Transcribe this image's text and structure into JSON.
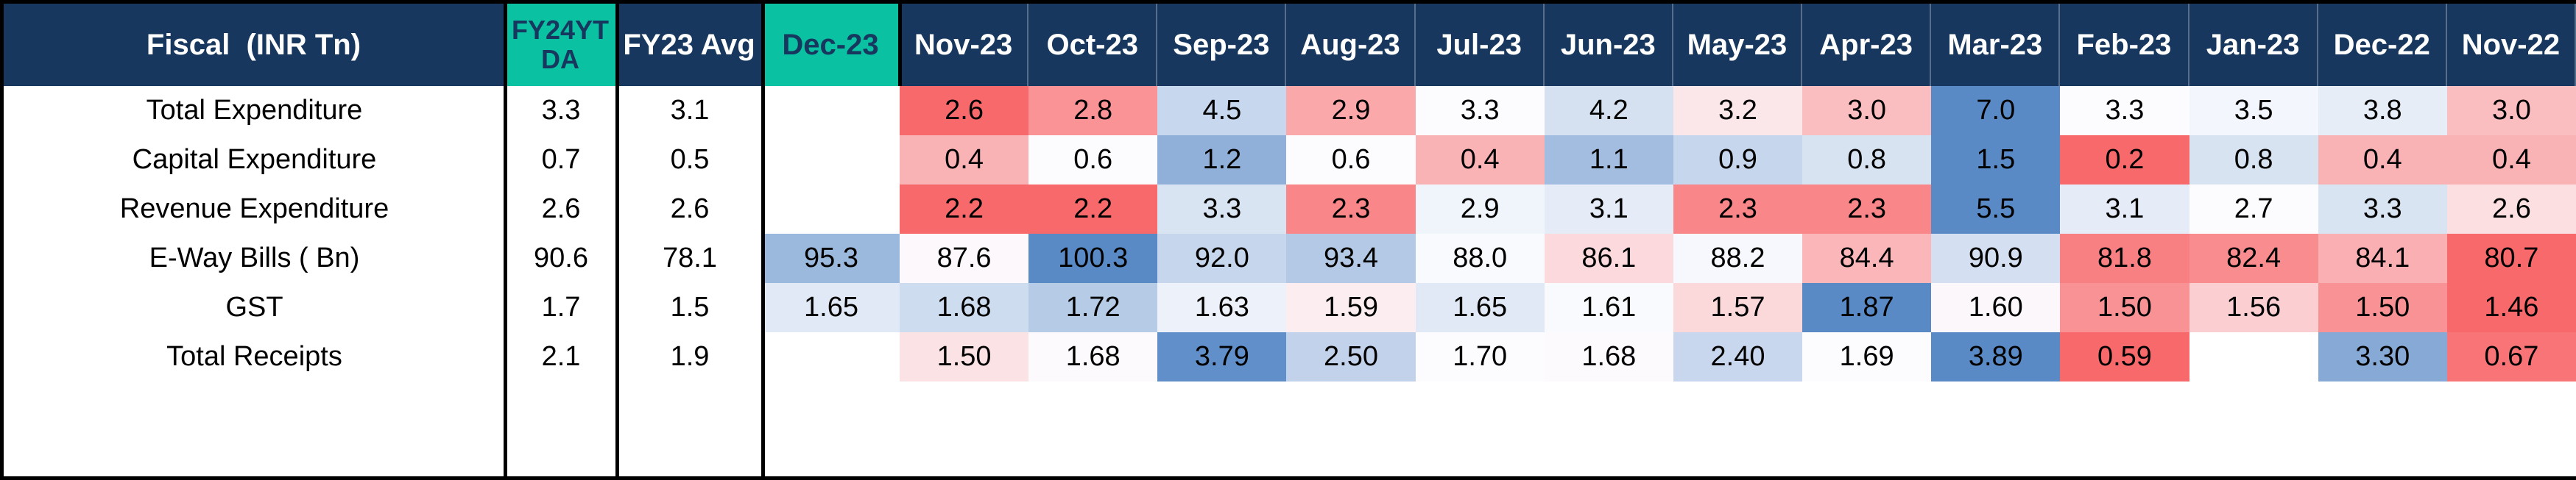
{
  "header": {
    "fiscal": "Fiscal  (INR Tn)",
    "ytd": "FY24YTDA",
    "fy23avg": "FY23 Avg",
    "months": [
      "Dec-23",
      "Nov-23",
      "Oct-23",
      "Sep-23",
      "Aug-23",
      "Jul-23",
      "Jun-23",
      "May-23",
      "Apr-23",
      "Mar-23",
      "Feb-23",
      "Jan-23",
      "Dec-22",
      "Nov-22"
    ]
  },
  "rows": [
    {
      "label": "Total Expenditure",
      "ytd": "3.3",
      "fy23avg": "3.1",
      "values": [
        "",
        "2.6",
        "2.8",
        "4.5",
        "2.9",
        "3.3",
        "4.2",
        "3.2",
        "3.0",
        "7.0",
        "3.3",
        "3.5",
        "3.8",
        "3.0"
      ]
    },
    {
      "label": "Capital Expenditure",
      "ytd": "0.7",
      "fy23avg": "0.5",
      "values": [
        "",
        "0.4",
        "0.6",
        "1.2",
        "0.6",
        "0.4",
        "1.1",
        "0.9",
        "0.8",
        "1.5",
        "0.2",
        "0.8",
        "0.4",
        "0.4"
      ]
    },
    {
      "label": "Revenue Expenditure",
      "ytd": "2.6",
      "fy23avg": "2.6",
      "values": [
        "",
        "2.2",
        "2.2",
        "3.3",
        "2.3",
        "2.9",
        "3.1",
        "2.3",
        "2.3",
        "5.5",
        "3.1",
        "2.7",
        "3.3",
        "2.6"
      ]
    },
    {
      "label": "E-Way Bills ( Bn)",
      "ytd": "90.6",
      "fy23avg": "78.1",
      "values": [
        "95.3",
        "87.6",
        "100.3",
        "92.0",
        "93.4",
        "88.0",
        "86.1",
        "88.2",
        "84.4",
        "90.9",
        "81.8",
        "82.4",
        "84.1",
        "80.7"
      ]
    },
    {
      "label": "GST",
      "ytd": "1.7",
      "fy23avg": "1.5",
      "values": [
        "1.65",
        "1.68",
        "1.72",
        "1.63",
        "1.59",
        "1.65",
        "1.61",
        "1.57",
        "1.87",
        "1.60",
        "1.50",
        "1.56",
        "1.50",
        "1.46"
      ]
    },
    {
      "label": "Total Receipts",
      "ytd": "2.1",
      "fy23avg": "1.9",
      "values": [
        "",
        "1.50",
        "1.68",
        "3.79",
        "2.50",
        "1.70",
        "1.68",
        "2.40",
        "1.69",
        "3.89",
        "0.59",
        "",
        "3.30",
        "0.67"
      ]
    }
  ],
  "colors": {
    "header_navy": "#17375E",
    "teal": "#0AC2A1",
    "scale_low": "#F8696B",
    "scale_mid": "#FCFCFF",
    "scale_high": "#5A8AC6",
    "blank_cell": "#FFFFFF",
    "text_dark": "#000000"
  },
  "chart_data": {
    "type": "heatmap",
    "title": "Fiscal  (INR Tn)",
    "columns": [
      "FY24YTDA",
      "FY23 Avg",
      "Dec-23",
      "Nov-23",
      "Oct-23",
      "Sep-23",
      "Aug-23",
      "Jul-23",
      "Jun-23",
      "May-23",
      "Apr-23",
      "Mar-23",
      "Feb-23",
      "Jan-23",
      "Dec-22",
      "Nov-22"
    ],
    "row_labels": [
      "Total Expenditure",
      "Capital Expenditure",
      "Revenue Expenditure",
      "E-Way Bills ( Bn)",
      "GST",
      "Total Receipts"
    ],
    "values": [
      [
        3.3,
        3.1,
        null,
        2.6,
        2.8,
        4.5,
        2.9,
        3.3,
        4.2,
        3.2,
        3.0,
        7.0,
        3.3,
        3.5,
        3.8,
        3.0
      ],
      [
        0.7,
        0.5,
        null,
        0.4,
        0.6,
        1.2,
        0.6,
        0.4,
        1.1,
        0.9,
        0.8,
        1.5,
        0.2,
        0.8,
        0.4,
        0.4
      ],
      [
        2.6,
        2.6,
        null,
        2.2,
        2.2,
        3.3,
        2.3,
        2.9,
        3.1,
        2.3,
        2.3,
        5.5,
        3.1,
        2.7,
        3.3,
        2.6
      ],
      [
        90.6,
        78.1,
        95.3,
        87.6,
        100.3,
        92.0,
        93.4,
        88.0,
        86.1,
        88.2,
        84.4,
        90.9,
        81.8,
        82.4,
        84.1,
        80.7
      ],
      [
        1.7,
        1.5,
        1.65,
        1.68,
        1.72,
        1.63,
        1.59,
        1.65,
        1.61,
        1.57,
        1.87,
        1.6,
        1.5,
        1.56,
        1.5,
        1.46
      ],
      [
        2.1,
        1.9,
        null,
        1.5,
        1.68,
        3.79,
        2.5,
        1.7,
        1.68,
        2.4,
        1.69,
        3.89,
        0.59,
        null,
        3.3,
        0.67
      ]
    ],
    "color_scale": {
      "low": "#F8696B",
      "mid": "#FCFCFF",
      "high": "#5A8AC6",
      "mapping": "3-color scale applied per row across the month columns only: row minimum = red, row median = white, row maximum = blue; blank cells and the FY24YTDA / FY23 Avg columns are uncolored white"
    },
    "legend_position": "none",
    "grid": false
  }
}
